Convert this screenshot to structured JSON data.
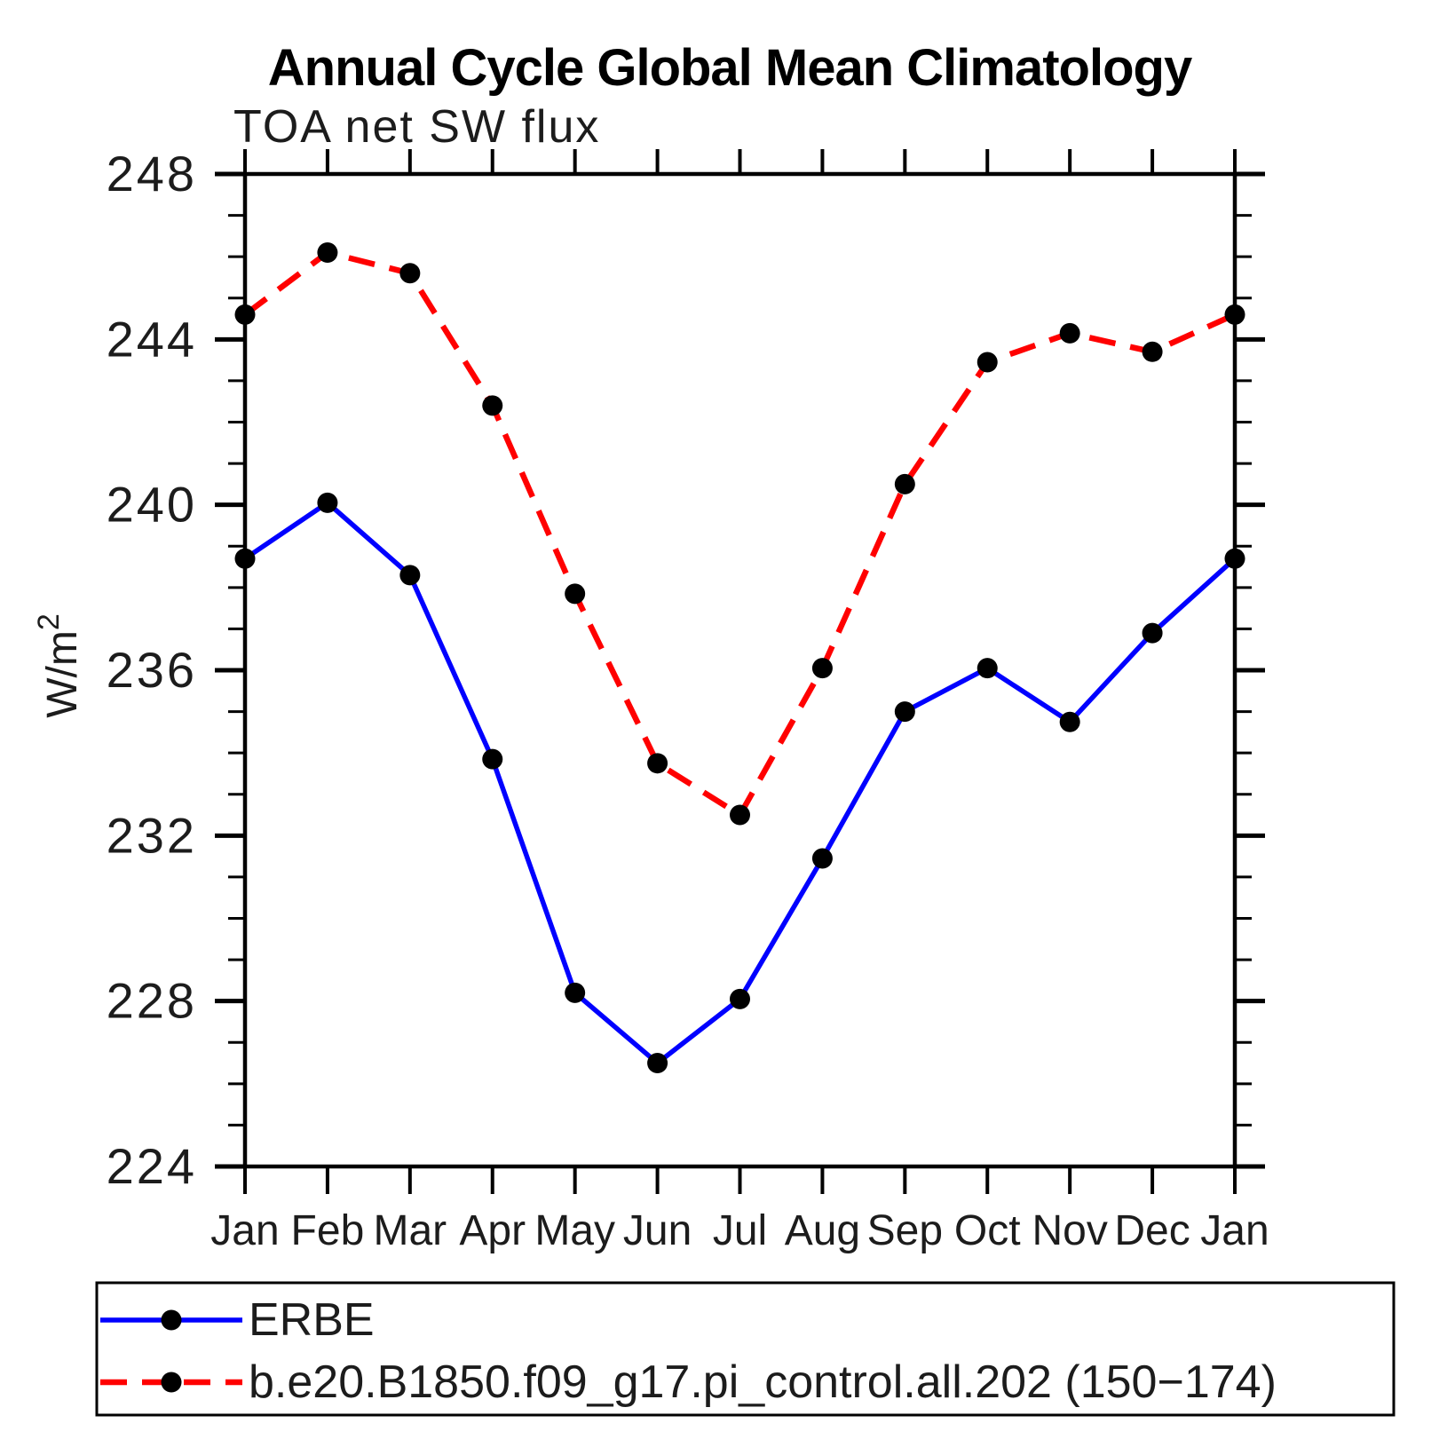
{
  "title": "Annual Cycle Global Mean Climatology",
  "subtitle": "TOA net SW flux",
  "y_axis_title_base": "W/m",
  "y_axis_title_exponent": "2",
  "legend": {
    "items": [
      {
        "label": "ERBE",
        "color": "#0000ff",
        "style": "solid"
      },
      {
        "label": "b.e20.B1850.f09_g17.pi_control.all.202 (150−174)",
        "color": "#ff0000",
        "style": "dashed"
      }
    ]
  },
  "colors": {
    "erbe_line": "#0000ff",
    "model_line": "#ff0000",
    "marker": "#000000",
    "axis": "#000000",
    "background": "#ffffff"
  },
  "chart_data": {
    "type": "line",
    "x_categories": [
      "Jan",
      "Feb",
      "Mar",
      "Apr",
      "May",
      "Jun",
      "Jul",
      "Aug",
      "Sep",
      "Oct",
      "Nov",
      "Dec",
      "Jan"
    ],
    "xlabel": "",
    "ylabel": "W/m2",
    "ylim": [
      224,
      248
    ],
    "y_major_ticks": [
      224,
      228,
      232,
      236,
      240,
      244,
      248
    ],
    "y_minor_step": 1,
    "grid": false,
    "legend_position": "bottom",
    "series": [
      {
        "name": "ERBE",
        "color": "#0000ff",
        "dash": "solid",
        "marker": "circle",
        "marker_color": "#000000",
        "values": [
          238.7,
          240.05,
          238.3,
          233.85,
          228.2,
          226.5,
          228.05,
          231.45,
          235.0,
          236.05,
          234.75,
          236.9,
          238.7
        ]
      },
      {
        "name": "b.e20.B1850.f09_g17.pi_control.all.202 (150−174)",
        "color": "#ff0000",
        "dash": "dashed",
        "marker": "circle",
        "marker_color": "#000000",
        "values": [
          244.6,
          246.1,
          245.6,
          242.4,
          237.85,
          233.75,
          232.5,
          236.05,
          240.5,
          243.45,
          244.15,
          243.7,
          244.6
        ]
      }
    ]
  }
}
